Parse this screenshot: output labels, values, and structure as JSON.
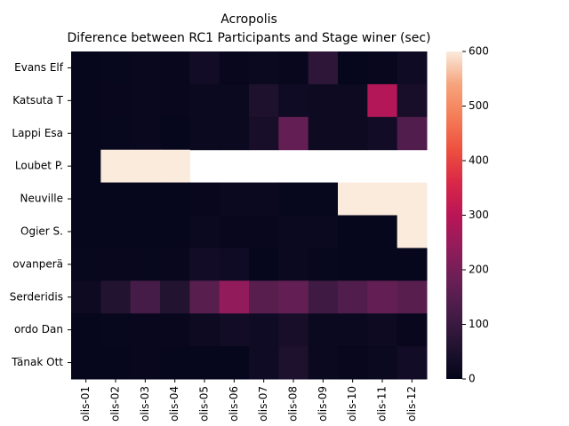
{
  "chart_data": {
    "type": "heatmap",
    "title": "Acropolis",
    "subtitle": "Diference between RC1 Participants and Stage winer (sec)",
    "categories": [
      "olis-01",
      "olis-02",
      "olis-03",
      "olis-04",
      "olis-05",
      "olis-06",
      "olis-07",
      "olis-08",
      "olis-09",
      "olis-10",
      "olis-11",
      "olis-12"
    ],
    "rows": [
      "Evans  Elf",
      "Katsuta  T",
      "Lappi  Esa",
      "Loubet  P.",
      "Neuville  ",
      "Ogier  S.",
      "ovanperä",
      "Serderidis",
      "ordo  Dan",
      "Tänak  Ott"
    ],
    "values": [
      [
        5,
        8,
        12,
        10,
        30,
        10,
        15,
        10,
        80,
        5,
        10,
        25
      ],
      [
        5,
        10,
        12,
        10,
        15,
        15,
        50,
        25,
        20,
        20,
        290,
        40
      ],
      [
        5,
        8,
        12,
        5,
        15,
        15,
        40,
        170,
        20,
        20,
        30,
        140
      ],
      [
        5,
        600,
        600,
        600,
        null,
        null,
        null,
        null,
        null,
        null,
        null,
        null
      ],
      [
        5,
        5,
        5,
        5,
        10,
        15,
        15,
        8,
        8,
        600,
        600,
        600
      ],
      [
        5,
        5,
        5,
        5,
        15,
        10,
        10,
        15,
        15,
        5,
        5,
        600
      ],
      [
        8,
        10,
        8,
        10,
        30,
        25,
        5,
        15,
        8,
        5,
        5,
        5
      ],
      [
        20,
        60,
        120,
        60,
        150,
        240,
        150,
        170,
        110,
        140,
        170,
        150
      ],
      [
        5,
        8,
        10,
        10,
        20,
        30,
        25,
        40,
        15,
        15,
        20,
        10
      ],
      [
        5,
        5,
        10,
        5,
        5,
        5,
        25,
        50,
        15,
        10,
        15,
        30
      ]
    ],
    "clim": [
      0,
      600
    ],
    "cticks": [
      0,
      100,
      200,
      300,
      400,
      500,
      600
    ]
  }
}
